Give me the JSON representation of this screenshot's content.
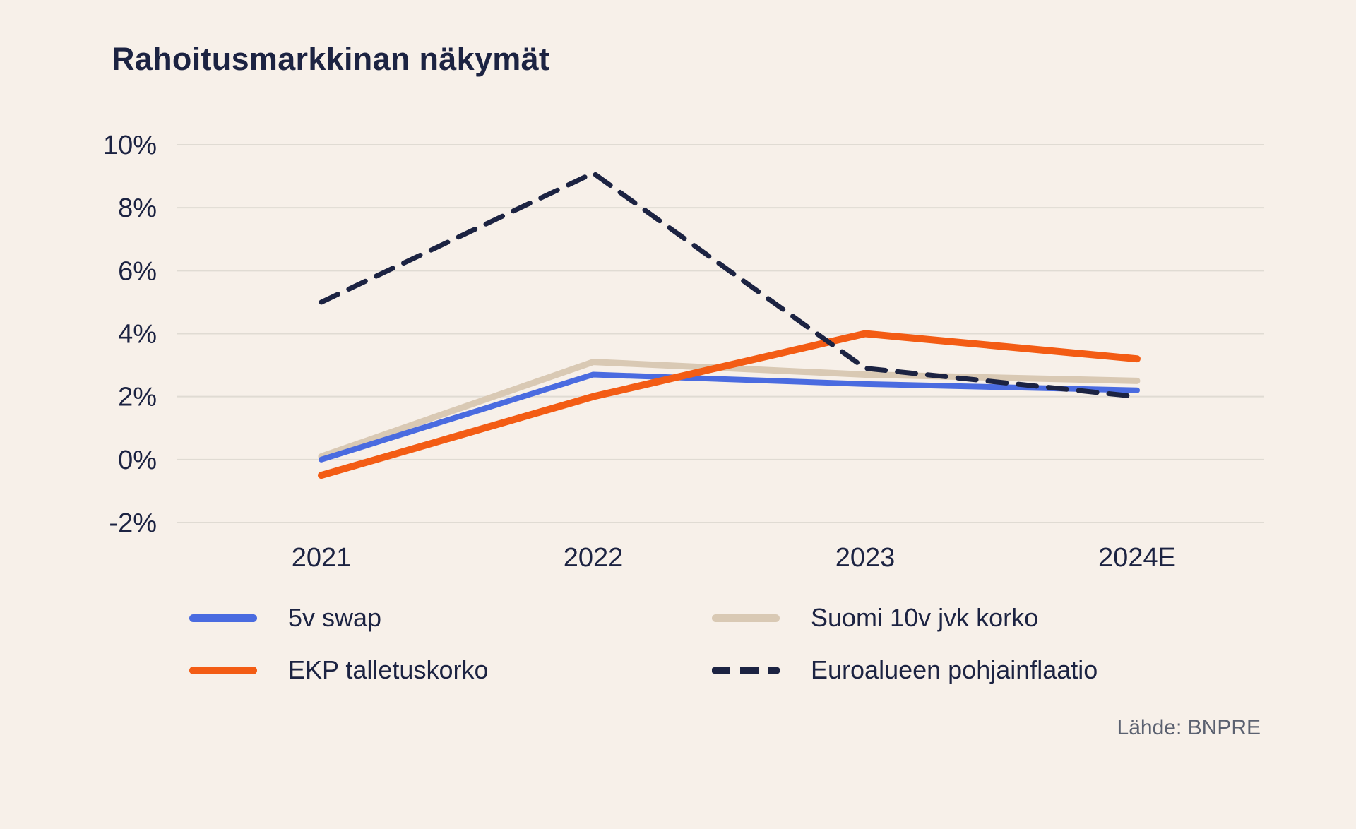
{
  "chart_data": {
    "type": "line",
    "title": "Rahoitusmarkkinan näkymät",
    "source": "Lähde: BNPRE",
    "categories": [
      "2021",
      "2022",
      "2023",
      "2024E"
    ],
    "ylim": [
      -2,
      10
    ],
    "yticks": [
      {
        "value": -2,
        "label": "-2%"
      },
      {
        "value": 0,
        "label": "0%"
      },
      {
        "value": 2,
        "label": "2%"
      },
      {
        "value": 4,
        "label": "4%"
      },
      {
        "value": 6,
        "label": "6%"
      },
      {
        "value": 8,
        "label": "8%"
      },
      {
        "value": 10,
        "label": "10%"
      }
    ],
    "grid": true,
    "legend_position": "bottom",
    "series": [
      {
        "name": "5v swap",
        "style": "solid",
        "color": "#4a6be0",
        "values": [
          0.0,
          2.7,
          2.4,
          2.2
        ]
      },
      {
        "name": "Suomi 10v jvk korko",
        "style": "solid",
        "color": "#d9c9b4",
        "values": [
          0.1,
          3.1,
          2.7,
          2.5
        ]
      },
      {
        "name": "EKP talletuskorko",
        "style": "solid",
        "color": "#f35c14",
        "values": [
          -0.5,
          2.0,
          4.0,
          3.2
        ]
      },
      {
        "name": "Euroalueen pohjainflaatio",
        "style": "dashed",
        "color": "#1c2342",
        "values": [
          5.0,
          9.1,
          2.9,
          2.0
        ]
      }
    ],
    "colors": {
      "background": "#f7f0e9",
      "text": "#1c2342",
      "grid": "#e0dbd3",
      "source_text": "#5b6170"
    }
  }
}
